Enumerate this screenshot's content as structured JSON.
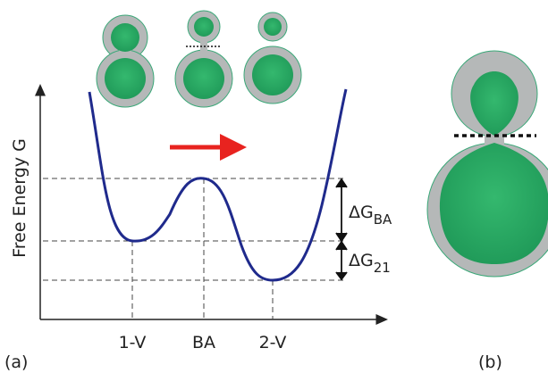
{
  "axis_label": "Free Energy  G",
  "states": [
    "1-V",
    "BA",
    "2-V"
  ],
  "barriers": [
    {
      "symbol": "ΔG",
      "subscript": "BA"
    },
    {
      "symbol": "ΔG",
      "subscript": "21"
    }
  ],
  "panels": [
    "(a)",
    "(b)"
  ]
}
